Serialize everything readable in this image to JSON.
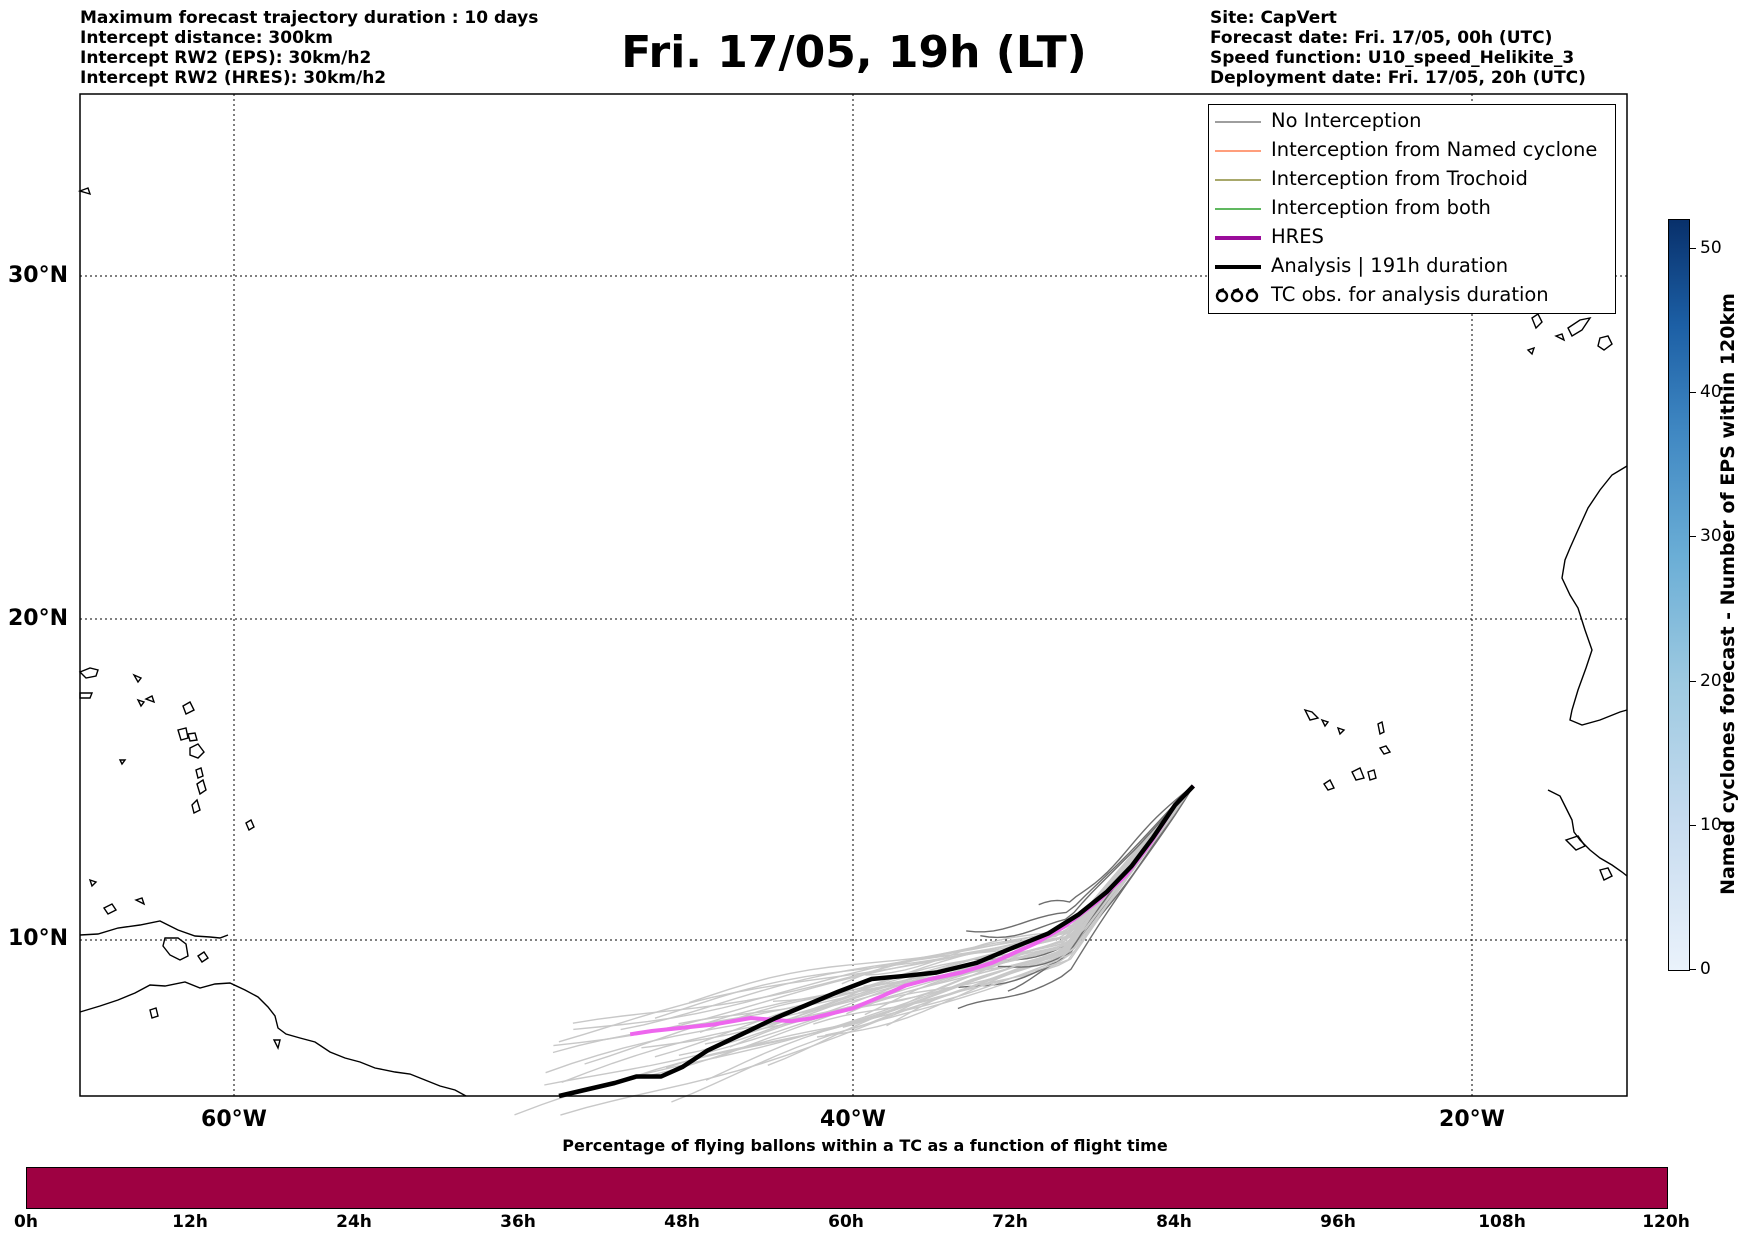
{
  "header": {
    "left_lines": [
      "Maximum forecast trajectory duration : 10 days",
      "Intercept distance: 300km",
      "Intercept RW2 (EPS):  30km/h2",
      "Intercept RW2 (HRES): 30km/h2"
    ],
    "title": "Fri. 17/05, 19h (LT)",
    "right_lines": [
      "Site: CapVert",
      "Forecast date: Fri. 17/05, 00h (UTC)",
      "Speed function: U10_speed_Helikite_3",
      "Deployment date: Fri. 17/05, 20h (UTC)"
    ]
  },
  "map": {
    "lat_range": [
      5.2,
      34.5
    ],
    "lon_range": [
      -65,
      -15
    ],
    "lat_labels": [
      "30°N",
      "20°N",
      "10°N"
    ],
    "lon_labels": [
      "60°W",
      "40°W",
      "20°W"
    ],
    "gridlines": true,
    "colors": {
      "no_interception": "#7f7f7f",
      "named_cyclone": "#ff7f50",
      "trochoid": "#8c8c3a",
      "both": "#2ca02c",
      "hres": "#ee66ee",
      "hres_legend": "#9a0d9a",
      "analysis": "#000000"
    },
    "hres_track": [
      [
        -29,
        14.8
      ],
      [
        -29.6,
        14.2
      ],
      [
        -30.4,
        13.0
      ],
      [
        -31.2,
        12.0
      ],
      [
        -32.1,
        11.2
      ],
      [
        -33.2,
        10.4
      ],
      [
        -34.1,
        9.9
      ],
      [
        -34.8,
        9.6
      ],
      [
        -35.5,
        9.3
      ],
      [
        -36.5,
        9.0
      ],
      [
        -37.5,
        8.8
      ],
      [
        -38.3,
        8.6
      ],
      [
        -39.0,
        8.3
      ],
      [
        -40.0,
        7.9
      ],
      [
        -41.3,
        7.6
      ],
      [
        -42.0,
        7.5
      ],
      [
        -43.3,
        7.6
      ],
      [
        -44.5,
        7.4
      ],
      [
        -45.5,
        7.3
      ],
      [
        -46.5,
        7.2
      ],
      [
        -47.2,
        7.1
      ]
    ],
    "analysis_track": [
      [
        -29,
        14.8
      ],
      [
        -29.6,
        14.2
      ],
      [
        -30.3,
        13.2
      ],
      [
        -31.0,
        12.3
      ],
      [
        -31.8,
        11.5
      ],
      [
        -32.7,
        10.8
      ],
      [
        -33.7,
        10.2
      ],
      [
        -35.0,
        9.7
      ],
      [
        -36.0,
        9.3
      ],
      [
        -37.3,
        9.0
      ],
      [
        -38.3,
        8.9
      ],
      [
        -39.4,
        8.8
      ],
      [
        -40.5,
        8.4
      ],
      [
        -41.5,
        8.0
      ],
      [
        -42.5,
        7.6
      ],
      [
        -43.6,
        7.1
      ],
      [
        -44.7,
        6.6
      ],
      [
        -45.5,
        6.1
      ],
      [
        -46.2,
        5.8
      ],
      [
        -47.0,
        5.8
      ],
      [
        -47.7,
        5.6
      ],
      [
        -48.6,
        5.4
      ],
      [
        -49.5,
        5.2
      ]
    ]
  },
  "legend": {
    "items": [
      {
        "label": "No Interception",
        "symbol": "line",
        "color": "#7f7f7f"
      },
      {
        "label": "Interception from Named cyclone",
        "symbol": "line",
        "color": "#ff7f50"
      },
      {
        "label": "Interception from Trochoid",
        "symbol": "line",
        "color": "#8c8c3a"
      },
      {
        "label": "Interception from both",
        "symbol": "line",
        "color": "#2ca02c"
      },
      {
        "label": "HRES",
        "symbol": "thick-line",
        "color": "#9a0d9a"
      },
      {
        "label": "Analysis | 191h duration",
        "symbol": "thick-line",
        "color": "#000000"
      },
      {
        "label": "TC obs. for analysis duration",
        "symbol": "tc-icon",
        "color": "#000000"
      }
    ]
  },
  "cyclone_colorbar": {
    "title": "Named cyclones forecast - Number of EPS within 120km",
    "range": [
      0,
      52
    ],
    "ticks": [
      0,
      10,
      20,
      30,
      40,
      50
    ]
  },
  "flight_time_bar": {
    "title": "Percentage of flying ballons within a TC as a function of flight time",
    "color": "#9e0142",
    "ticks": [
      "0h",
      "12h",
      "24h",
      "36h",
      "48h",
      "60h",
      "72h",
      "84h",
      "96h",
      "108h",
      "120h"
    ]
  }
}
